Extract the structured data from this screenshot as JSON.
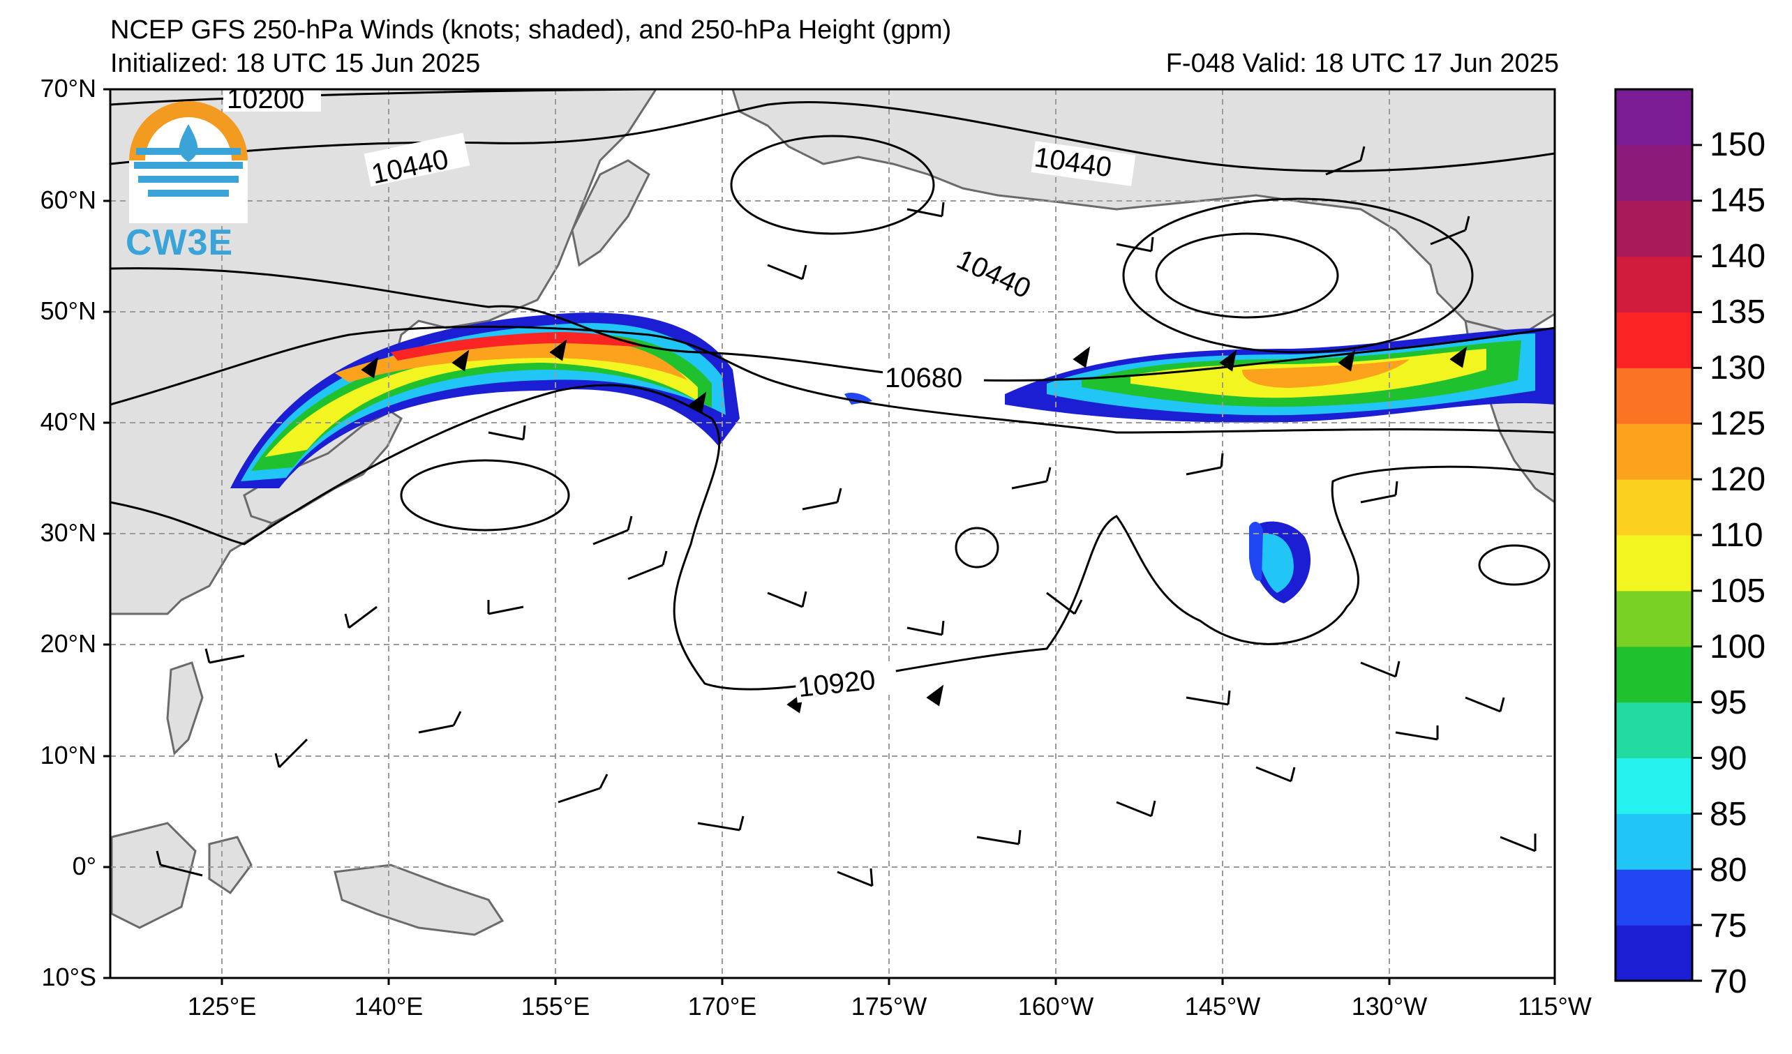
{
  "header": {
    "title": "NCEP GFS 250-hPa Winds (knots; shaded), and 250-hPa Height (gpm)",
    "initialized": "Initialized: 18 UTC 15 Jun 2025",
    "valid": "F-048  Valid: 18 UTC 17 Jun 2025"
  },
  "logo": {
    "text": "CW3E"
  },
  "axes": {
    "lat_labels": [
      "70°N",
      "60°N",
      "50°N",
      "40°N",
      "30°N",
      "20°N",
      "10°N",
      "0°",
      "10°S"
    ],
    "lon_labels": [
      "125°E",
      "140°E",
      "155°E",
      "170°E",
      "175°W",
      "160°W",
      "145°W",
      "130°W",
      "115°W"
    ]
  },
  "contours": {
    "labels": [
      "10200",
      "10440",
      "10440",
      "10440",
      "10680",
      "10920"
    ]
  },
  "colorbar": {
    "ticks": [
      "70",
      "75",
      "80",
      "85",
      "90",
      "95",
      "100",
      "105",
      "110",
      "120",
      "125",
      "130",
      "135",
      "140",
      "145",
      "150"
    ],
    "colors": [
      "#1c1ed4",
      "#2147f5",
      "#21c6f7",
      "#24f2ee",
      "#21dba0",
      "#20c12f",
      "#78d124",
      "#f3f520",
      "#fcd01e",
      "#fca21d",
      "#fa7423",
      "#fb2424",
      "#d01b3c",
      "#a91a59",
      "#8b1a7a",
      "#7c1c95"
    ]
  },
  "colors": {
    "land": "#e0e0e0",
    "coast": "#6a6a6a",
    "grid": "#9a9a9a"
  }
}
